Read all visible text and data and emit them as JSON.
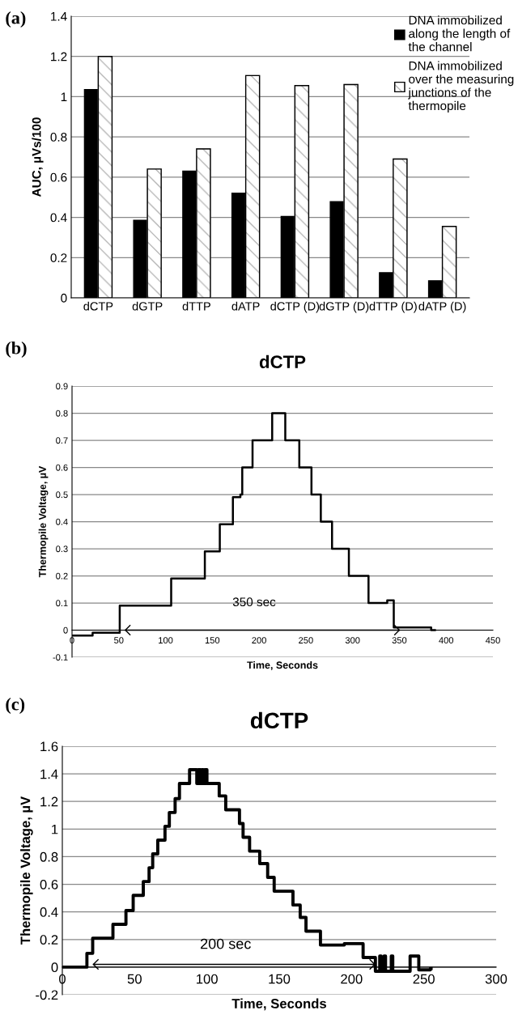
{
  "chart_data": [
    {
      "type": "bar",
      "annotations": [
        "(a)"
      ],
      "ylabel": "AUC, µVs/100",
      "categories": [
        "dCTP",
        "dGTP",
        "dTTP",
        "dATP",
        "dCTP (D)",
        "dGTP (D)",
        "dTTP (D)",
        "dATP (D)"
      ],
      "series": [
        {
          "name": "DNA immobilized\nalong the length of\nthe channel",
          "color": "#000000",
          "values": [
            1.035,
            0.385,
            0.63,
            0.52,
            0.405,
            0.478,
            0.125,
            0.085
          ]
        },
        {
          "name": "DNA immobilized\nover the measuring\njunctions of the\nthermopile",
          "color": "#a8a8a8",
          "values": [
            1.2,
            0.64,
            0.74,
            1.105,
            1.055,
            1.06,
            0.69,
            0.355
          ]
        }
      ],
      "ylim": [
        0,
        1.4
      ],
      "yticks": [
        0,
        0.2,
        0.4,
        0.6,
        0.8,
        1,
        1.2,
        1.4
      ],
      "grid": "y",
      "legend": "top right"
    },
    {
      "type": "step",
      "title": "dCTP",
      "xlabel": "Time, Seconds",
      "ylabel": "Thermopile Voltage, µV",
      "x": [
        0,
        22,
        51,
        106,
        142,
        158,
        172,
        180,
        182,
        193,
        214,
        228,
        243,
        256,
        266,
        278,
        296,
        317,
        337,
        344,
        384,
        388
      ],
      "series": [
        {
          "type": "line",
          "color": "#000000",
          "x": [
            57,
            350
          ],
          "values": [
            0,
            0
          ]
        },
        {
          "color": "#000000",
          "values": [
            -0.02,
            -0.01,
            0.09,
            0.19,
            0.29,
            0.39,
            0.49,
            0.5,
            0.6,
            0.7,
            0.8,
            0.7,
            0.6,
            0.5,
            0.4,
            0.3,
            0.2,
            0.1,
            0.11,
            0.01,
            0,
            0
          ]
        }
      ],
      "annotations": [
        "(b)",
        "350 sec"
      ],
      "xlim": [
        0,
        450
      ],
      "xticks": [
        0,
        50,
        100,
        150,
        200,
        250,
        300,
        350,
        400,
        450
      ],
      "ylim": [
        -0.1,
        0.9
      ],
      "yticks": [
        -0.1,
        0,
        0.1,
        0.2,
        0.3,
        0.4,
        0.5,
        0.6,
        0.7,
        0.8,
        0.9
      ],
      "grid": "y"
    },
    {
      "type": "step",
      "title": "dCTP",
      "xlabel": "Time, Seconds",
      "ylabel": "Thermopile Voltage, µV",
      "x": [
        0,
        17,
        21,
        35,
        44,
        49,
        56,
        60,
        62.5,
        66,
        71,
        74,
        78,
        81,
        88,
        93,
        94,
        95.5,
        96.5,
        97.5,
        98.5,
        100,
        108.5,
        113,
        122.5,
        125,
        129.5,
        136.5,
        142,
        146.5,
        159.5,
        164.5,
        168.5,
        178.5,
        195,
        208,
        216.5,
        219.5,
        220.5,
        222.5,
        223.5,
        227.5,
        228.5,
        240.5,
        246.5,
        254.5,
        255
      ],
      "series": [
        {
          "type": "line",
          "color": "#000000",
          "x": [
            21.5,
            216
          ],
          "values": [
            0.02,
            0.02
          ]
        },
        {
          "color": "#000000",
          "values": [
            0,
            0.1,
            0.21,
            0.31,
            0.41,
            0.52,
            0.62,
            0.72,
            0.82,
            0.92,
            1.02,
            1.12,
            1.22,
            1.33,
            1.43,
            1.33,
            1.43,
            1.33,
            1.43,
            1.33,
            1.43,
            1.33,
            1.24,
            1.14,
            1.04,
            0.94,
            0.84,
            0.75,
            0.65,
            0.55,
            0.45,
            0.36,
            0.26,
            0.16,
            0.17,
            0.07,
            -0.03,
            0.08,
            -0.03,
            0.08,
            -0.03,
            0.08,
            -0.03,
            0.08,
            -0.02,
            -0.01,
            -0.01
          ]
        }
      ],
      "annotations": [
        "(c)",
        "200 sec"
      ],
      "xlim": [
        0,
        300
      ],
      "xticks": [
        0,
        50,
        100,
        150,
        200,
        250,
        300
      ],
      "ylim": [
        -0.2,
        1.6
      ],
      "yticks": [
        -0.2,
        0,
        0.2,
        0.4,
        0.6,
        0.8,
        1,
        1.2,
        1.4,
        1.6
      ],
      "grid": "y"
    }
  ]
}
